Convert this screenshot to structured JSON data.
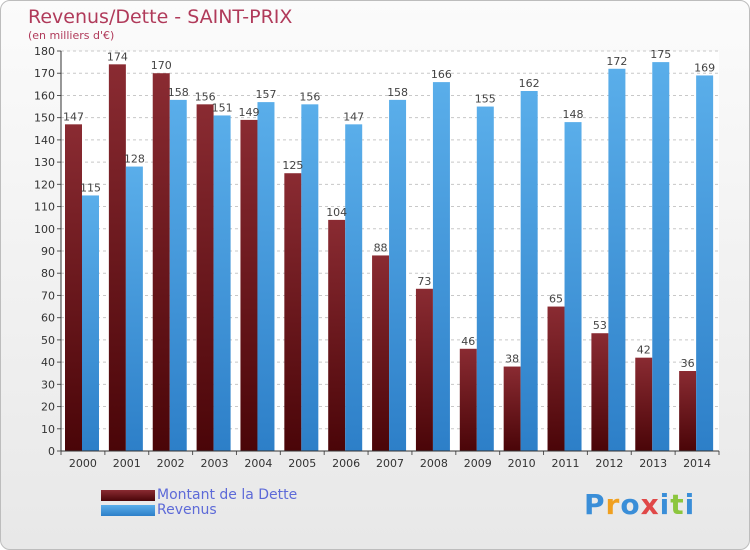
{
  "chart_data": {
    "type": "bar",
    "title": "Revenus/Dette - SAINT-PRIX",
    "subtitle": "(en milliers d'€)",
    "categories": [
      "2000",
      "2001",
      "2002",
      "2003",
      "2004",
      "2005",
      "2006",
      "2007",
      "2008",
      "2009",
      "2010",
      "2011",
      "2012",
      "2013",
      "2014"
    ],
    "series": [
      {
        "name": "Montant de la Dette",
        "color": "#6b0f16",
        "values": [
          147,
          174,
          170,
          156,
          149,
          125,
          104,
          88,
          73,
          46,
          38,
          65,
          53,
          42,
          36
        ]
      },
      {
        "name": "Revenus",
        "color": "#3b8fd4",
        "values": [
          115,
          128,
          158,
          151,
          157,
          156,
          147,
          158,
          166,
          155,
          162,
          148,
          172,
          175,
          169
        ]
      }
    ],
    "ylim": [
      0,
      180
    ],
    "ytick_step": 10,
    "grid": true,
    "legend_position": "bottom-left"
  },
  "logo": {
    "letters": [
      "P",
      "r",
      "o",
      "x",
      "i",
      "t",
      "i"
    ],
    "colors": [
      "#3a8ed8",
      "#f0a020",
      "#3a8ed8",
      "#e04848",
      "#3a8ed8",
      "#8cc63e",
      "#3a8ed8"
    ]
  }
}
